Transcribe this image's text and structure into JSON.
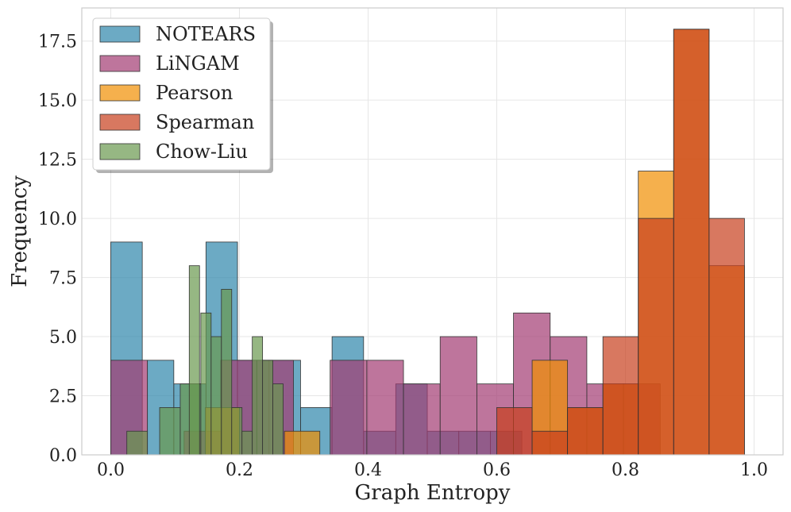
{
  "chart_data": {
    "type": "histogram",
    "xlabel": "Graph Entropy",
    "ylabel": "Frequency",
    "xlim": [
      -0.045,
      1.045
    ],
    "ylim": [
      0,
      18.9
    ],
    "xticks": [
      0.0,
      0.2,
      0.4,
      0.6,
      0.8,
      1.0
    ],
    "xtick_labels": [
      "0.0",
      "0.2",
      "0.4",
      "0.6",
      "0.8",
      "1.0"
    ],
    "yticks": [
      0,
      2.5,
      5,
      7.5,
      10,
      12.5,
      15,
      17.5
    ],
    "ytick_labels": [
      "0.0",
      "2.5",
      "5.0",
      "7.5",
      "10.0",
      "12.5",
      "15.0",
      "17.5"
    ],
    "grid": true,
    "legend_position": "top-left",
    "series": [
      {
        "name": "NOTEARS",
        "color": "#2E86AB",
        "bins": [
          [
            0.0,
            0.049,
            9
          ],
          [
            0.057,
            0.098,
            4
          ],
          [
            0.098,
            0.148,
            3
          ],
          [
            0.148,
            0.197,
            9
          ],
          [
            0.197,
            0.246,
            4
          ],
          [
            0.246,
            0.295,
            4
          ],
          [
            0.295,
            0.344,
            2
          ],
          [
            0.344,
            0.393,
            5
          ],
          [
            0.393,
            0.443,
            1
          ],
          [
            0.443,
            0.492,
            3
          ],
          [
            0.492,
            0.541,
            1
          ],
          [
            0.541,
            0.59,
            1
          ],
          [
            0.59,
            0.639,
            1
          ]
        ]
      },
      {
        "name": "LiNGAM",
        "color": "#A23B72",
        "bins": [
          [
            0.0,
            0.057,
            4
          ],
          [
            0.057,
            0.114,
            0
          ],
          [
            0.114,
            0.171,
            1
          ],
          [
            0.171,
            0.227,
            4
          ],
          [
            0.227,
            0.284,
            4
          ],
          [
            0.284,
            0.341,
            0
          ],
          [
            0.341,
            0.398,
            4
          ],
          [
            0.398,
            0.455,
            4
          ],
          [
            0.455,
            0.512,
            3
          ],
          [
            0.512,
            0.569,
            5
          ],
          [
            0.569,
            0.626,
            3
          ],
          [
            0.626,
            0.683,
            6
          ],
          [
            0.683,
            0.74,
            5
          ],
          [
            0.74,
            0.797,
            3
          ],
          [
            0.797,
            0.854,
            3
          ]
        ]
      },
      {
        "name": "Pearson",
        "color": "#F18F01",
        "bins": [
          [
            0.147,
            0.2,
            2
          ],
          [
            0.27,
            0.325,
            1
          ],
          [
            0.655,
            0.71,
            4
          ],
          [
            0.71,
            0.765,
            2
          ],
          [
            0.765,
            0.82,
            3
          ],
          [
            0.82,
            0.875,
            12
          ],
          [
            0.875,
            0.93,
            18
          ],
          [
            0.93,
            0.985,
            8
          ]
        ]
      },
      {
        "name": "Spearman",
        "color": "#C73E1D",
        "bins": [
          [
            0.6,
            0.655,
            2
          ],
          [
            0.655,
            0.71,
            1
          ],
          [
            0.71,
            0.765,
            2
          ],
          [
            0.765,
            0.82,
            5
          ],
          [
            0.82,
            0.875,
            10
          ],
          [
            0.875,
            0.93,
            18
          ],
          [
            0.93,
            0.985,
            10
          ]
        ]
      },
      {
        "name": "Chow-Liu",
        "color": "#6A994E",
        "bins": [
          [
            0.025,
            0.057,
            1
          ],
          [
            0.076,
            0.108,
            2
          ],
          [
            0.108,
            0.14,
            3
          ],
          [
            0.122,
            0.138,
            8
          ],
          [
            0.14,
            0.156,
            6
          ],
          [
            0.156,
            0.172,
            5
          ],
          [
            0.172,
            0.188,
            7
          ],
          [
            0.188,
            0.204,
            2
          ],
          [
            0.204,
            0.22,
            1
          ],
          [
            0.22,
            0.236,
            5
          ],
          [
            0.236,
            0.252,
            4
          ],
          [
            0.252,
            0.268,
            3
          ]
        ]
      }
    ]
  }
}
